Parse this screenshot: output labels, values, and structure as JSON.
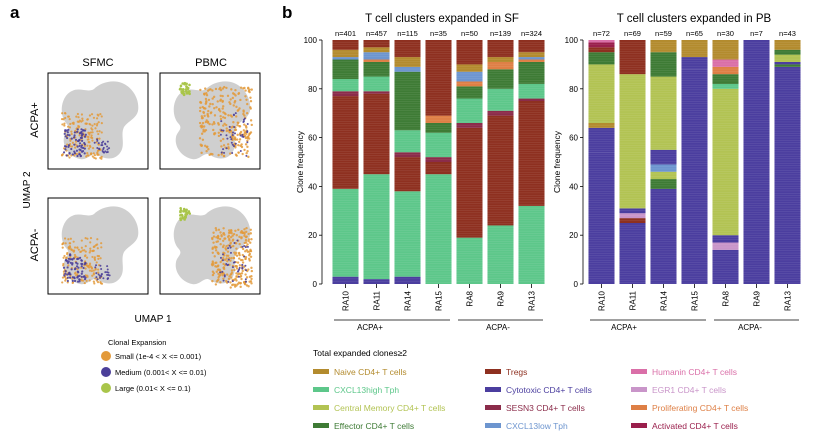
{
  "panel_a": {
    "letter": "a",
    "col_labels": [
      "SFMC",
      "PBMC"
    ],
    "row_labels": [
      "ACPA+",
      "ACPA-"
    ],
    "xlabel": "UMAP 1",
    "ylabel": "UMAP 2",
    "legend_title": "Clonal Expansion",
    "legend_items": [
      {
        "label": "Small (1e-4 < X <= 0.001)",
        "color": "#E39A3A"
      },
      {
        "label": "Medium (0.001< X <= 0.01)",
        "color": "#4B3F99"
      },
      {
        "label": "Large (0.01< X <= 0.1)",
        "color": "#A9C54A"
      }
    ]
  },
  "panel_b": {
    "letter": "b",
    "legend_title": "Total expanded clones≥2",
    "group_labels": [
      "ACPA+",
      "ACPA-"
    ],
    "legend": [
      {
        "label": "Naive CD4+ T cells",
        "color": "#B38B2E"
      },
      {
        "label": "CXCL13high Tph",
        "color": "#5DC78A"
      },
      {
        "label": "Central Memory CD4+ T cells",
        "color": "#B2C353"
      },
      {
        "label": "Effector CD4+ T cells",
        "color": "#3E7B35"
      },
      {
        "label": "Tregs",
        "color": "#8E3020"
      },
      {
        "label": "Cytotoxic CD4+ T cells",
        "color": "#4B3E9F"
      },
      {
        "label": "SESN3 CD4+ T cells",
        "color": "#8B2C4A"
      },
      {
        "label": "CXCL13low Tph",
        "color": "#6D95CF"
      },
      {
        "label": "Humanin CD4+ T cells",
        "color": "#DA6FA8"
      },
      {
        "label": "EGR1 CD4+ T cells",
        "color": "#C995C9"
      },
      {
        "label": "Proliferating CD4+ T cells",
        "color": "#DE7F45"
      },
      {
        "label": "Activated CD4+ T cells",
        "color": "#9A1F4C"
      }
    ]
  },
  "chart_data": [
    {
      "type": "bar",
      "stacked": true,
      "title": "T cell clusters expanded in SF",
      "xlabel": "",
      "ylabel": "Clone frequency",
      "ylim": [
        0,
        100
      ],
      "yticks": [
        0,
        20,
        40,
        60,
        80,
        100
      ],
      "categories": [
        "RA10",
        "RA11",
        "RA14",
        "RA15",
        "RA8",
        "RA9",
        "RA13"
      ],
      "n_labels": [
        "n=401",
        "n=457",
        "n=115",
        "n=35",
        "n=50",
        "n=139",
        "n=324"
      ],
      "groups": [
        {
          "label": "ACPA+",
          "members": [
            "RA10",
            "RA11",
            "RA14",
            "RA15"
          ]
        },
        {
          "label": "ACPA-",
          "members": [
            "RA8",
            "RA9",
            "RA13"
          ]
        }
      ],
      "series": [
        {
          "name": "Cytotoxic CD4+ T cells",
          "values": [
            3,
            2,
            3,
            0,
            0,
            0,
            0
          ]
        },
        {
          "name": "CXCL13high Tph",
          "values": [
            36,
            43,
            35,
            45,
            19,
            24,
            32
          ]
        },
        {
          "name": "Tregs",
          "values": [
            38,
            33,
            14,
            5,
            45,
            45,
            43
          ]
        },
        {
          "name": "SESN3 CD4+ T cells",
          "values": [
            2,
            1,
            2,
            2,
            2,
            2,
            1
          ]
        },
        {
          "name": "CXCL13high Tph",
          "values": [
            5,
            6,
            9,
            10,
            10,
            9,
            6
          ]
        },
        {
          "name": "Effector CD4+ T cells",
          "values": [
            8,
            6,
            24,
            4,
            5,
            8,
            9
          ]
        },
        {
          "name": "Proliferating CD4+ T cells",
          "values": [
            0,
            1,
            0,
            3,
            2,
            3,
            1
          ]
        },
        {
          "name": "CXCL13low Tph",
          "values": [
            1,
            3,
            2,
            0,
            4,
            0,
            1
          ]
        },
        {
          "name": "Naive CD4+ T cells",
          "values": [
            3,
            2,
            4,
            0,
            3,
            2,
            2
          ]
        },
        {
          "name": "Tregs",
          "values": [
            4,
            3,
            7,
            31,
            10,
            7,
            5
          ]
        }
      ]
    },
    {
      "type": "bar",
      "stacked": true,
      "title": "T cell clusters expanded in PB",
      "xlabel": "",
      "ylabel": "Clone frequency",
      "ylim": [
        0,
        100
      ],
      "yticks": [
        0,
        20,
        40,
        60,
        80,
        100
      ],
      "categories": [
        "RA10",
        "RA11",
        "RA14",
        "RA15",
        "RA8",
        "RA9",
        "RA13"
      ],
      "n_labels": [
        "n=72",
        "n=69",
        "n=59",
        "n=65",
        "n=30",
        "n=7",
        "n=43"
      ],
      "groups": [
        {
          "label": "ACPA+",
          "members": [
            "RA10",
            "RA11",
            "RA14",
            "RA15"
          ]
        },
        {
          "label": "ACPA-",
          "members": [
            "RA8",
            "RA9",
            "RA13"
          ]
        }
      ],
      "series": [
        {
          "name": "Cytotoxic CD4+ T cells",
          "values": [
            54,
            25,
            39,
            88,
            14,
            100,
            89
          ]
        },
        {
          "name": "Tregs",
          "values": [
            0,
            2,
            0,
            0,
            0,
            0,
            0
          ]
        },
        {
          "name": "EGR1 CD4+ T cells",
          "values": [
            0,
            2,
            0,
            0,
            3,
            0,
            0
          ]
        },
        {
          "name": "Cytotoxic CD4+ T cells",
          "values": [
            0,
            2,
            0,
            0,
            0,
            0,
            0
          ]
        },
        {
          "name": "Effector CD4+ T cells",
          "values": [
            0,
            0,
            4,
            0,
            0,
            0,
            1
          ]
        },
        {
          "name": "Central Memory CD4+ T cells",
          "values": [
            0,
            0,
            3,
            0,
            0,
            0,
            0
          ]
        },
        {
          "name": "Cytotoxic CD4+ T cells",
          "values": [
            0,
            0,
            0,
            0,
            3,
            0,
            0
          ]
        },
        {
          "name": "CXCL13low Tph",
          "values": [
            0,
            0,
            3,
            0,
            0,
            0,
            0
          ]
        },
        {
          "name": "Cytotoxic CD4+ T cells",
          "values": [
            10,
            0,
            6,
            5,
            0,
            0,
            1
          ]
        },
        {
          "name": "Naive CD4+ T cells",
          "values": [
            2,
            0,
            0,
            0,
            0,
            0,
            0
          ]
        },
        {
          "name": "Central Memory CD4+ T cells",
          "values": [
            24,
            55,
            30,
            0,
            60,
            0,
            3
          ]
        },
        {
          "name": "CXCL13high Tph",
          "values": [
            0,
            0,
            0,
            0,
            2,
            0,
            0
          ]
        },
        {
          "name": "Effector CD4+ T cells",
          "values": [
            5,
            0,
            10,
            0,
            4,
            0,
            2
          ]
        },
        {
          "name": "Proliferating CD4+ T cells",
          "values": [
            0,
            0,
            0,
            0,
            3,
            0,
            0
          ]
        },
        {
          "name": "Humanin CD4+ T cells",
          "values": [
            0,
            0,
            0,
            0,
            3,
            0,
            0
          ]
        },
        {
          "name": "Tregs",
          "values": [
            2,
            14,
            0,
            0,
            0,
            0,
            0
          ]
        },
        {
          "name": "Activated CD4+ T cells",
          "values": [
            2,
            0,
            0,
            0,
            0,
            0,
            0
          ]
        },
        {
          "name": "Humanin CD4+ T cells",
          "values": [
            1,
            0,
            0,
            0,
            0,
            0,
            0
          ]
        },
        {
          "name": "Naive CD4+ T cells",
          "values": [
            0,
            0,
            5,
            7,
            8,
            0,
            4
          ]
        }
      ]
    }
  ]
}
